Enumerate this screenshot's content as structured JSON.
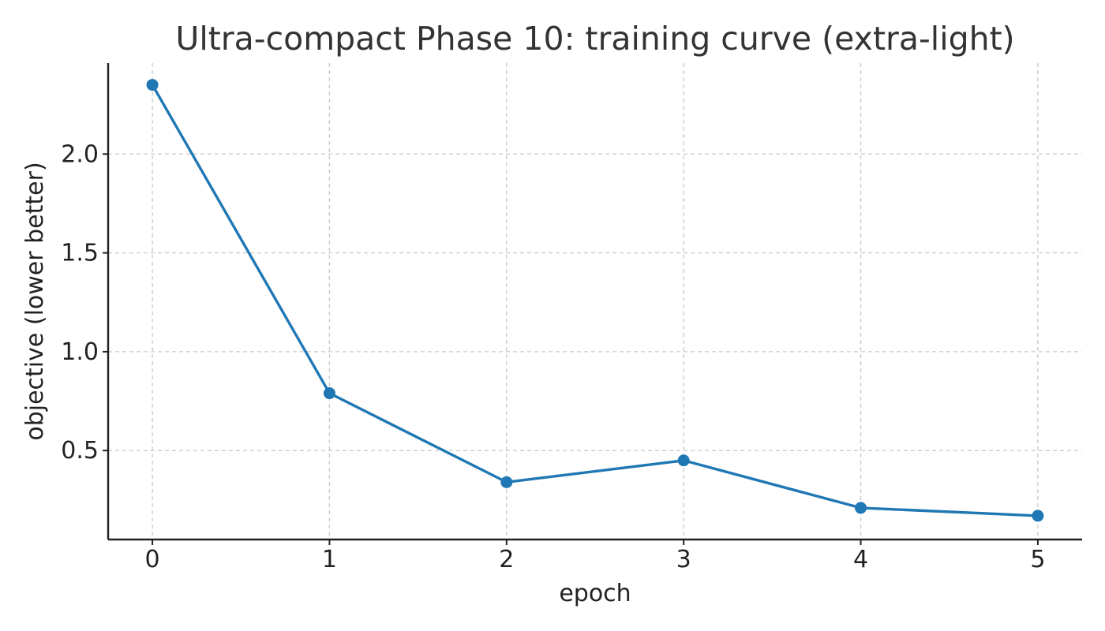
{
  "chart_data": {
    "type": "line",
    "title": "Ultra-compact Phase 10: training curve (extra-light)",
    "xlabel": "epoch",
    "ylabel": "objective (lower better)",
    "x": [
      0,
      1,
      2,
      3,
      4,
      5
    ],
    "series": [
      {
        "values": [
          2.35,
          0.79,
          0.34,
          0.45,
          0.21,
          0.17
        ],
        "color": "#1f77b4",
        "marker": "circle"
      }
    ],
    "xticks": [
      "0",
      "1",
      "2",
      "3",
      "4",
      "5"
    ],
    "yticks": [
      "0.5",
      "1.0",
      "1.5",
      "2.0"
    ],
    "ytick_values": [
      0.5,
      1.0,
      1.5,
      2.0
    ],
    "xlim": [
      -0.25,
      5.25
    ],
    "ylim": [
      0.05,
      2.46
    ],
    "grid": true,
    "grid_style": "dashed",
    "spines": "left-bottom"
  }
}
